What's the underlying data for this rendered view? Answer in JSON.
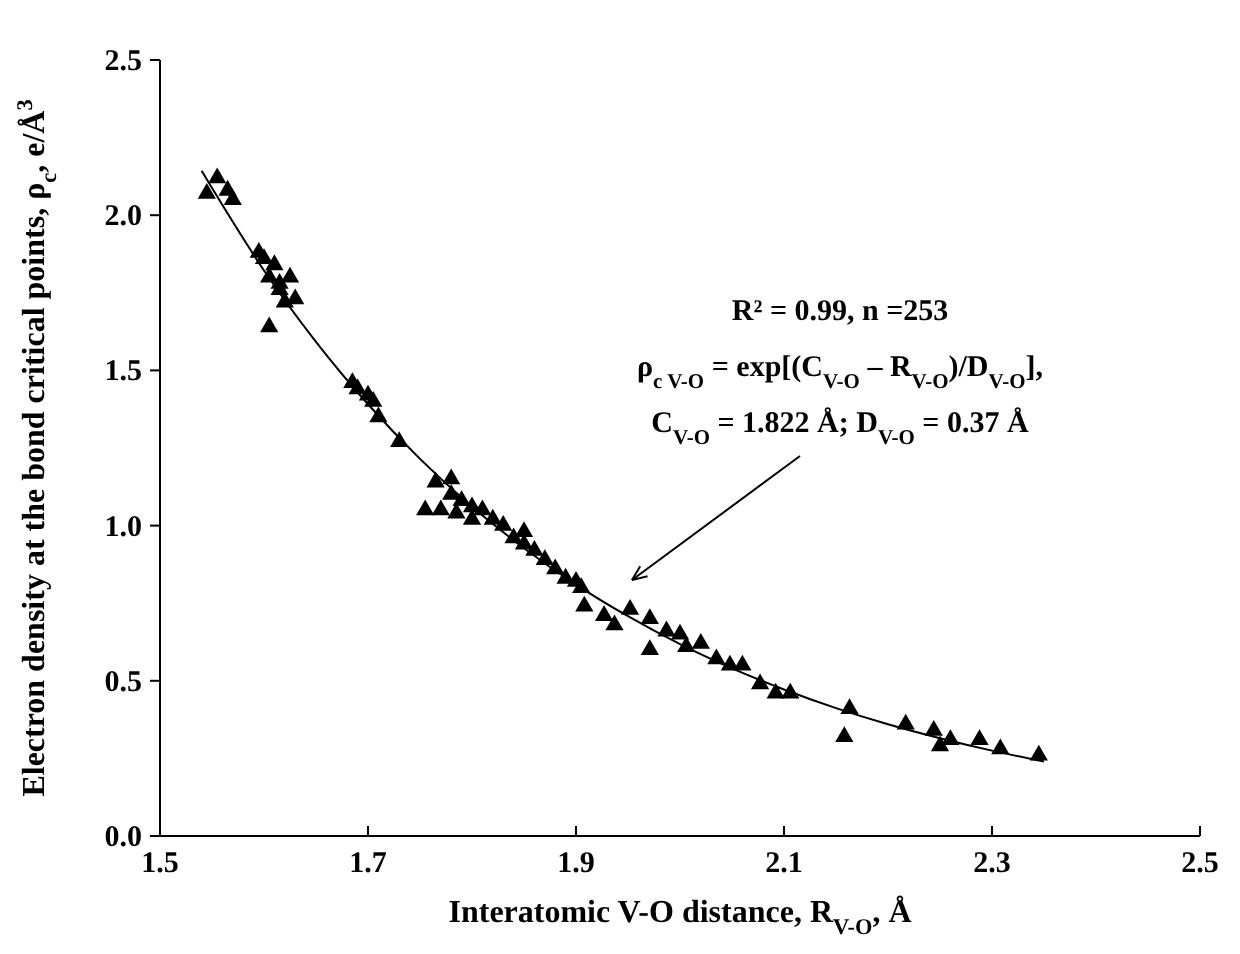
{
  "chart_data": {
    "type": "scatter",
    "xlabel": "Interatomic V-O distance,  R$_{V-O}$, Å",
    "ylabel": "Electron density  at the bond critical points, ρ$_{c}$, e/Å$^{3}$",
    "xlim": [
      1.5,
      2.5
    ],
    "xticks": [
      1.5,
      1.7,
      1.9,
      2.1,
      2.3,
      2.5
    ],
    "ylim": [
      0,
      2.5
    ],
    "yticks": [
      {
        "value": 0,
        "label": "0.0"
      },
      {
        "value": 0.5,
        "label": "0.5"
      },
      {
        "value": 1,
        "label": "1.0"
      },
      {
        "value": 1.5,
        "label": "1.5"
      },
      {
        "value": 2,
        "label": "2.0"
      },
      {
        "value": 2.5,
        "label": "2.5"
      }
    ],
    "grid": false,
    "marker": "triangle",
    "series": [
      {
        "color": "#000000",
        "x": [
          1.545,
          1.555,
          1.565,
          1.57,
          1.595,
          1.6,
          1.605,
          1.61,
          1.605,
          1.615,
          1.62,
          1.615,
          1.625,
          1.63,
          1.685,
          1.69,
          1.7,
          1.705,
          1.71,
          1.73,
          1.755,
          1.765,
          1.77,
          1.78,
          1.78,
          1.785,
          1.79,
          1.8,
          1.8,
          1.81,
          1.82,
          1.83,
          1.84,
          1.85,
          1.85,
          1.86,
          1.87,
          1.88,
          1.89,
          1.9,
          1.905,
          1.908,
          1.927,
          1.937,
          1.952,
          1.971,
          1.971,
          1.987,
          2.0,
          2.006,
          2.02,
          2.035,
          2.048,
          2.06,
          2.077,
          2.092,
          2.106,
          2.163,
          2.158,
          2.217,
          2.244,
          2.25,
          2.26,
          2.288,
          2.308,
          2.345
        ],
        "values": [
          2.07,
          2.12,
          2.08,
          2.05,
          1.88,
          1.86,
          1.8,
          1.84,
          1.64,
          1.76,
          1.72,
          1.78,
          1.8,
          1.73,
          1.46,
          1.44,
          1.42,
          1.4,
          1.35,
          1.27,
          1.05,
          1.14,
          1.05,
          1.15,
          1.1,
          1.04,
          1.08,
          1.06,
          1.02,
          1.05,
          1.02,
          1.0,
          0.96,
          0.94,
          0.98,
          0.92,
          0.89,
          0.86,
          0.83,
          0.82,
          0.8,
          0.74,
          0.71,
          0.68,
          0.73,
          0.7,
          0.6,
          0.66,
          0.65,
          0.61,
          0.62,
          0.57,
          0.55,
          0.55,
          0.49,
          0.46,
          0.46,
          0.41,
          0.32,
          0.36,
          0.34,
          0.29,
          0.31,
          0.31,
          0.28,
          0.26
        ]
      },
      {
        "type": "line",
        "color": "#000000",
        "marker": "none",
        "x": [
          1.54,
          1.6,
          1.65,
          1.7,
          1.75,
          1.8,
          1.85,
          1.9,
          1.95,
          2.0,
          2.05,
          2.1,
          2.15,
          2.2,
          2.25,
          2.3,
          2.35
        ],
        "values": [
          2.143,
          1.822,
          1.592,
          1.391,
          1.215,
          1.061,
          0.927,
          0.81,
          0.708,
          0.618,
          0.54,
          0.472,
          0.412,
          0.36,
          0.315,
          0.275,
          0.24
        ]
      }
    ],
    "annotations": [
      "R² = 0.99, n =253",
      "ρ$_{c V-O}$ = exp[(C$_{V-O}$ – R$_{V-O}$)/D$_{V-O}$],",
      "C$_{V-O}$ = 1.822 Å; D$_{V-O}$ = 0.37 Å"
    ]
  }
}
